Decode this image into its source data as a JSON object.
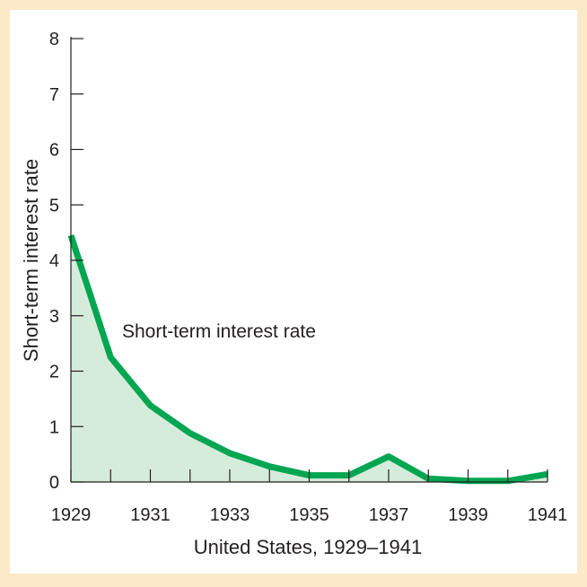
{
  "chart_data": {
    "type": "area",
    "x": [
      1929,
      1930,
      1931,
      1932,
      1933,
      1934,
      1935,
      1936,
      1937,
      1938,
      1939,
      1940,
      1941
    ],
    "series": [
      {
        "name": "Short-term interest rate",
        "values": [
          4.45,
          2.25,
          1.38,
          0.88,
          0.52,
          0.28,
          0.12,
          0.12,
          0.46,
          0.06,
          0.02,
          0.02,
          0.14
        ]
      }
    ],
    "xticks": [
      1929,
      1930,
      1931,
      1932,
      1933,
      1934,
      1935,
      1936,
      1937,
      1938,
      1939,
      1940,
      1941
    ],
    "xtick_labels": [
      "1929",
      "1931",
      "1933",
      "1935",
      "1937",
      "1939",
      "1941"
    ],
    "yticks": [
      0,
      1,
      2,
      3,
      4,
      5,
      6,
      7,
      8
    ],
    "xlim": [
      1929,
      1941
    ],
    "ylim": [
      0,
      8
    ],
    "xlabel": "United States, 1929–1941",
    "ylabel": "Short-term interest rate",
    "annotation": "Short-term interest rate",
    "grid": false,
    "colors": {
      "line": "#00a651",
      "fill": "#d6ecdb",
      "background": "#fbe9c8"
    }
  }
}
